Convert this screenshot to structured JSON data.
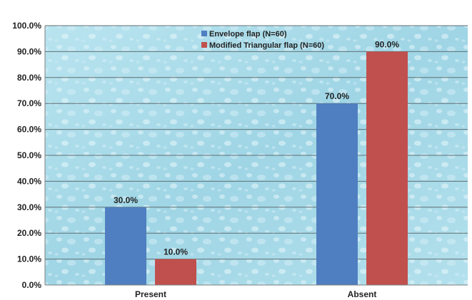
{
  "chart_data": {
    "type": "bar",
    "title": "",
    "xlabel": "",
    "ylabel": "",
    "categories": [
      "Present",
      "Absent"
    ],
    "series": [
      {
        "name": "Envelope flap (N=60)",
        "values": [
          30.0,
          70.0
        ],
        "color": "#4f7fc0"
      },
      {
        "name": "Modified Triangular flap (N=60)",
        "values": [
          10.0,
          90.0
        ],
        "color": "#c0504d"
      }
    ],
    "data_labels": [
      [
        "30.0%",
        "70.0%"
      ],
      [
        "10.0%",
        "90.0%"
      ]
    ],
    "ylim": [
      0,
      100
    ],
    "yticks": [
      "0.0%",
      "10.0%",
      "20.0%",
      "30.0%",
      "40.0%",
      "50.0%",
      "60.0%",
      "70.0%",
      "80.0%",
      "90.0%",
      "100.0%"
    ],
    "grid": true,
    "legend_position": "top-center",
    "plot_background": "#a9dbe8"
  }
}
